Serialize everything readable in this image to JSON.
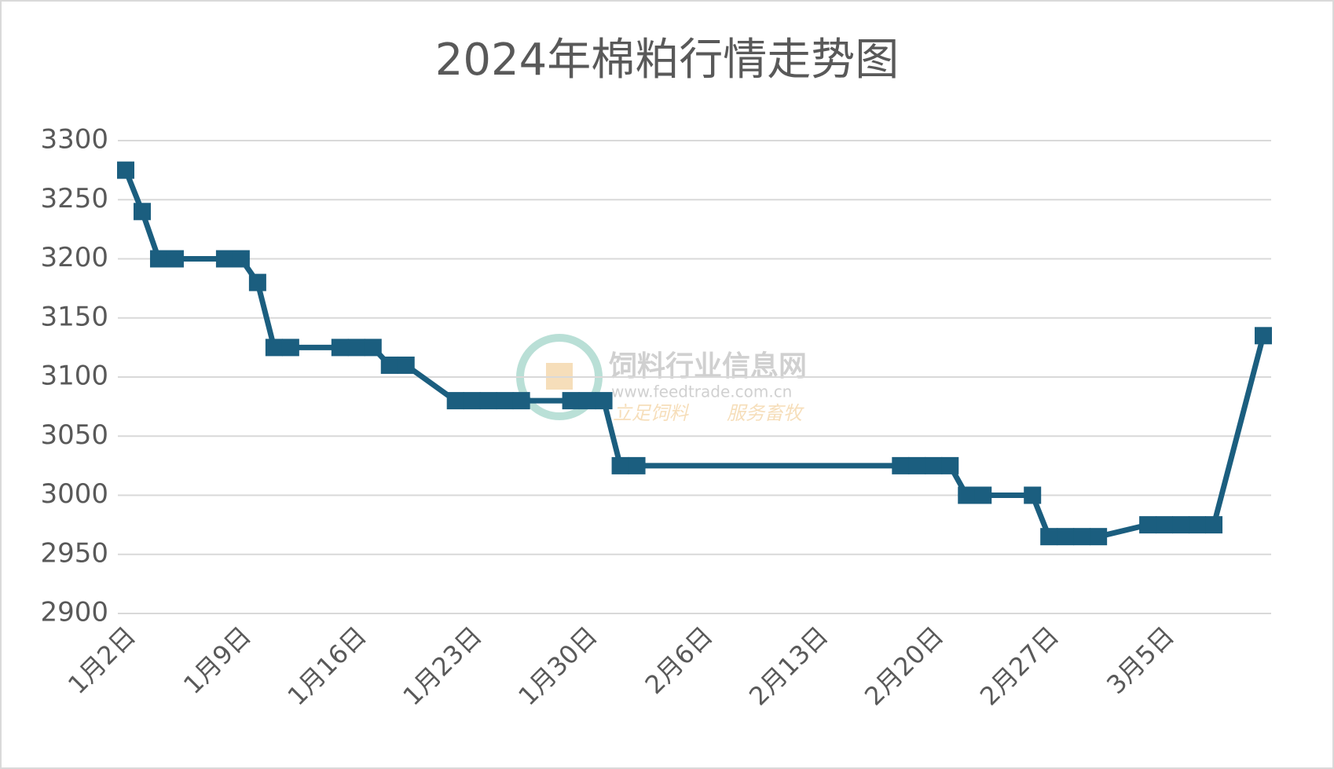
{
  "chart_data": {
    "type": "line",
    "title": "2024年棉粕行情走势图",
    "x": [
      "1月2日",
      "1月3日",
      "1月4日",
      "1月5日",
      "1月8日",
      "1月9日",
      "1月10日",
      "1月11日",
      "1月12日",
      "1月15日",
      "1月16日",
      "1月17日",
      "1月18日",
      "1月19日",
      "1月22日",
      "1月23日",
      "1月24日",
      "1月25日",
      "1月26日",
      "1月29日",
      "1月30日",
      "1月31日",
      "2月1日",
      "2月2日",
      "2月18日",
      "2月19日",
      "2月20日",
      "2月21日",
      "2月22日",
      "2月23日",
      "2月26日",
      "2月27日",
      "2月28日",
      "2月29日",
      "3月1日",
      "3月4日",
      "3月5日",
      "3月6日",
      "3月7日",
      "3月8日",
      "3月11日"
    ],
    "series": [
      {
        "name": "棉粕",
        "color": "#1b5e7f",
        "values": [
          3275,
          3240,
          3200,
          3200,
          3200,
          3200,
          3180,
          3125,
          3125,
          3125,
          3125,
          3125,
          3110,
          3110,
          3080,
          3080,
          3080,
          3080,
          3080,
          3080,
          3080,
          3080,
          3025,
          3025,
          3025,
          3025,
          3025,
          3025,
          3000,
          3000,
          3000,
          2965,
          2965,
          2965,
          2965,
          2975,
          2975,
          2975,
          2975,
          2975,
          3135
        ]
      }
    ],
    "xlim": [
      "1月2日",
      "3月11日"
    ],
    "xticks": [
      "1月2日",
      "1月9日",
      "1月16日",
      "1月23日",
      "1月30日",
      "2月6日",
      "2月13日",
      "2月20日",
      "2月27日",
      "3月5日"
    ],
    "ylim": [
      2900,
      3300
    ],
    "yticks": [
      2900,
      2950,
      3000,
      3050,
      3100,
      3150,
      3200,
      3250,
      3300
    ],
    "grid": true
  },
  "watermark": {
    "name": "饲料行业信息网",
    "url": "www.feedtrade.com.cn",
    "slogan_left": "立足饲料",
    "slogan_right": "服务畜牧"
  }
}
